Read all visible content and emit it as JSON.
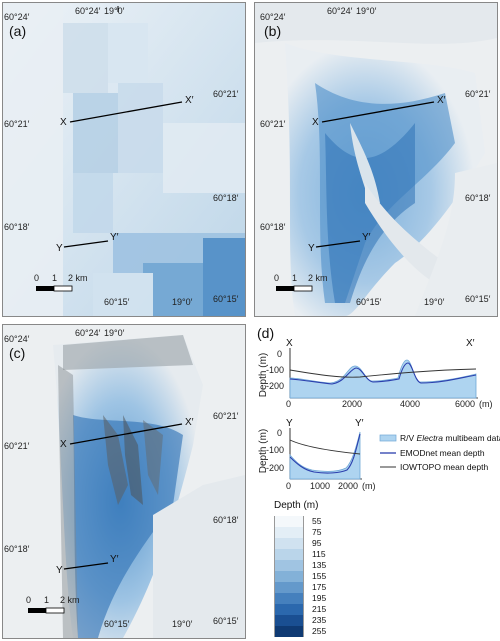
{
  "panels": {
    "a": {
      "label": "(a)",
      "lon_top_left": "60°24′",
      "lon_top_mid": "19°0′",
      "lat_left_top": "60°24′",
      "lat_left_mid": "60°21′",
      "lat_left_bot": "60°18′",
      "lat_right_top": "60°21′",
      "lat_right_bot": "60°18′",
      "lat_bot_left": "60°15′",
      "lon_bot_right": "19°0′",
      "lat_right_bottom": "60°15′",
      "x": "X",
      "x_prime": "X′",
      "y": "Y",
      "y_prime": "Y′",
      "scale_0": "0",
      "scale_1": "1",
      "scale_2": "2 km"
    },
    "b": {
      "label": "(b)",
      "lon_top_left": "60°24′",
      "lon_top_mid": "19°0′",
      "lat_left_top": "60°24′",
      "lat_left_mid": "60°21′",
      "lat_left_bot": "60°18′",
      "lat_right_top": "60°21′",
      "lat_right_bot": "60°18′",
      "lat_bot_left": "60°15′",
      "lon_bot_right": "19°0′",
      "lat_right_bottom": "60°15′",
      "x": "X",
      "x_prime": "X′",
      "y": "Y",
      "y_prime": "Y′",
      "scale_0": "0",
      "scale_1": "1",
      "scale_2": "2 km"
    },
    "c": {
      "label": "(c)",
      "lon_top_left": "60°24′",
      "lon_top_mid": "19°0′",
      "lat_left_top": "60°24′",
      "lat_left_mid": "60°21′",
      "lat_left_bot": "60°18′",
      "lat_right_top": "60°21′",
      "lat_right_bot": "60°18′",
      "lat_bot_left": "60°15′",
      "lon_bot_right": "19°0′",
      "lat_right_bottom": "60°15′",
      "x": "X",
      "x_prime": "X′",
      "y": "Y",
      "y_prime": "Y′",
      "scale_0": "0",
      "scale_1": "1",
      "scale_2": "2 km"
    }
  },
  "profiles": {
    "label": "(d)",
    "xx": {
      "start": "X",
      "end": "X′",
      "ylabel": "Depth (m)",
      "xunit": "(m)",
      "yticks": [
        "0",
        "-100",
        "-200"
      ],
      "xticks": [
        "0",
        "2000",
        "4000",
        "6000"
      ]
    },
    "yy": {
      "start": "Y",
      "end": "Y′",
      "ylabel": "Depth (m)",
      "xunit": "(m)",
      "yticks": [
        "0",
        "-100",
        "-200"
      ],
      "xticks": [
        "0",
        "1000",
        "2000"
      ]
    },
    "legend": {
      "multibeam_prefix": "R/V ",
      "multibeam_italic": "Electra",
      "multibeam_suffix": " multibeam data",
      "emodnet": "EMODnet mean depth",
      "iowtopo": "IOWTOPO mean depth"
    },
    "colors": {
      "multibeam": "#aed4f0",
      "emodnet": "#2b3fae",
      "iowtopo": "#333333"
    }
  },
  "depth_legend": {
    "title": "Depth (m)",
    "values": [
      "55",
      "75",
      "95",
      "115",
      "135",
      "155",
      "175",
      "195",
      "215",
      "235",
      "255"
    ],
    "colors": [
      "#f4f8fb",
      "#e3eef6",
      "#d0e2f0",
      "#bad5ea",
      "#a0c4e2",
      "#83b1d8",
      "#6499cb",
      "#4580bd",
      "#2b68ad",
      "#1a4f92",
      "#0f3a73"
    ]
  }
}
